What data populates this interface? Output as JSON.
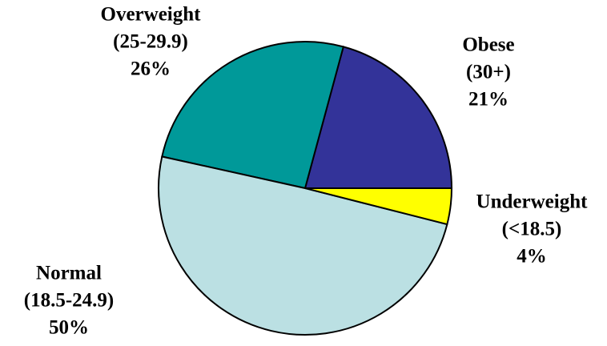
{
  "chart_data": {
    "type": "pie",
    "categories": [
      "Obese",
      "Overweight",
      "Normal",
      "Underweight"
    ],
    "ranges": [
      "(30+)",
      "(25-29.9)",
      "(18.5-24.9)",
      "(<18.5)"
    ],
    "values": [
      21,
      26,
      50,
      4
    ],
    "value_labels": [
      "21%",
      "26%",
      "50%",
      "4%"
    ],
    "colors": [
      "#333399",
      "#009999",
      "#bbe0e3",
      "#ffff00"
    ]
  }
}
